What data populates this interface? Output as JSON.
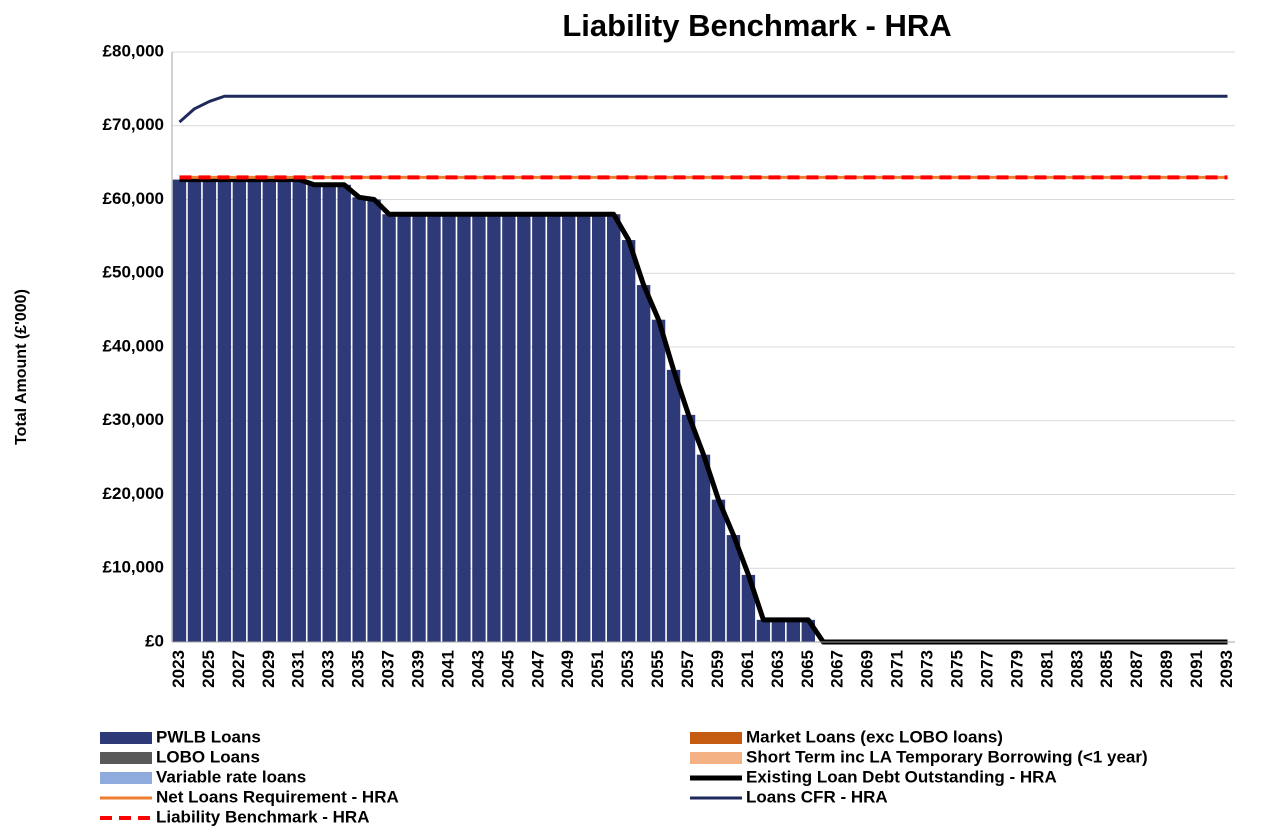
{
  "chart_data": {
    "type": "bar",
    "title": "Liability Benchmark - HRA",
    "y_label": "Total Amount (£'000)",
    "categories": [
      "2023",
      null,
      "2025",
      null,
      "2027",
      null,
      "2029",
      null,
      "2031",
      null,
      "2033",
      null,
      "2035",
      null,
      "2037",
      null,
      "2039",
      null,
      "2041",
      null,
      "2043",
      null,
      "2045",
      null,
      "2047",
      null,
      "2049",
      null,
      "2051",
      null,
      "2053",
      null,
      "2055",
      null,
      "2057",
      null,
      "2059",
      null,
      "2061",
      null,
      "2063",
      null,
      "2065",
      null,
      "2067",
      null,
      "2069",
      null,
      "2071",
      null,
      "2073",
      null,
      "2075",
      null,
      "2077",
      null,
      "2079",
      null,
      "2081",
      null,
      "2083",
      null,
      "2085",
      null,
      "2087",
      null,
      "2089",
      null,
      "2091",
      null,
      "2093"
    ],
    "ylim": [
      0,
      80000
    ],
    "yticks": [
      {
        "value": 0,
        "label": "£0"
      },
      {
        "value": 10000,
        "label": "£10,000"
      },
      {
        "value": 20000,
        "label": "£20,000"
      },
      {
        "value": 30000,
        "label": "£30,000"
      },
      {
        "value": 40000,
        "label": "£40,000"
      },
      {
        "value": 50000,
        "label": "£50,000"
      },
      {
        "value": 60000,
        "label": "£60,000"
      },
      {
        "value": 70000,
        "label": "£70,000"
      },
      {
        "value": 80000,
        "label": "£80,000"
      }
    ],
    "grid": true,
    "series": [
      {
        "name": "PWLB Loans",
        "kind": "bar",
        "color": "#2e3a78",
        "values": [
          62700,
          62700,
          62700,
          62700,
          62700,
          62700,
          62700,
          62700,
          62700,
          62000,
          62000,
          62000,
          60300,
          60000,
          58000,
          58000,
          58000,
          58000,
          58000,
          58000,
          58000,
          58000,
          58000,
          58000,
          58000,
          58000,
          58000,
          58000,
          58000,
          58000,
          54500,
          48400,
          43700,
          36900,
          30800,
          25400,
          19300,
          14500,
          9100,
          3000,
          3000,
          3000,
          3000,
          0,
          0,
          0,
          0,
          0,
          0,
          0,
          0,
          0,
          0,
          0,
          0,
          0,
          0,
          0,
          0,
          0,
          0,
          0,
          0,
          0,
          0,
          0,
          0,
          0,
          0,
          0,
          0
        ]
      },
      {
        "name": "Market Loans (exc LOBO loans)",
        "kind": "bar",
        "color": "#c55a11",
        "values": [
          0,
          0,
          0,
          0,
          0,
          0,
          0,
          0,
          0,
          0,
          0,
          0,
          0,
          0,
          0,
          0,
          0,
          0,
          0,
          0,
          0,
          0,
          0,
          0,
          0,
          0,
          0,
          0,
          0,
          0,
          0,
          0,
          0,
          0,
          0,
          0,
          0,
          0,
          0,
          0,
          0,
          0,
          0,
          0,
          0,
          0,
          0,
          0,
          0,
          0,
          0,
          0,
          0,
          0,
          0,
          0,
          0,
          0,
          0,
          0,
          0,
          0,
          0,
          0,
          0,
          0,
          0,
          0,
          0,
          0,
          0
        ]
      },
      {
        "name": "LOBO Loans",
        "kind": "bar",
        "color": "#595959",
        "values": [
          0,
          0,
          0,
          0,
          0,
          0,
          0,
          0,
          0,
          0,
          0,
          0,
          0,
          0,
          0,
          0,
          0,
          0,
          0,
          0,
          0,
          0,
          0,
          0,
          0,
          0,
          0,
          0,
          0,
          0,
          0,
          0,
          0,
          0,
          0,
          0,
          0,
          0,
          0,
          0,
          0,
          0,
          0,
          0,
          0,
          0,
          0,
          0,
          0,
          0,
          0,
          0,
          0,
          0,
          0,
          0,
          0,
          0,
          0,
          0,
          0,
          0,
          0,
          0,
          0,
          0,
          0,
          0,
          0,
          0,
          0
        ]
      },
      {
        "name": "Short Term inc LA Temporary Borrowing (<1 year)",
        "kind": "bar",
        "color": "#f4b183",
        "values": [
          0,
          0,
          0,
          0,
          0,
          0,
          0,
          0,
          0,
          0,
          0,
          0,
          0,
          0,
          0,
          0,
          0,
          0,
          0,
          0,
          0,
          0,
          0,
          0,
          0,
          0,
          0,
          0,
          0,
          0,
          0,
          0,
          0,
          0,
          0,
          0,
          0,
          0,
          0,
          0,
          0,
          0,
          0,
          0,
          0,
          0,
          0,
          0,
          0,
          0,
          0,
          0,
          0,
          0,
          0,
          0,
          0,
          0,
          0,
          0,
          0,
          0,
          0,
          0,
          0,
          0,
          0,
          0,
          0,
          0,
          0
        ]
      },
      {
        "name": "Variable rate loans",
        "kind": "bar",
        "color": "#8faadc",
        "values": [
          0,
          0,
          0,
          0,
          0,
          0,
          0,
          0,
          0,
          0,
          0,
          0,
          0,
          0,
          0,
          0,
          0,
          0,
          0,
          0,
          0,
          0,
          0,
          0,
          0,
          0,
          0,
          0,
          0,
          0,
          0,
          0,
          0,
          0,
          0,
          0,
          0,
          0,
          0,
          0,
          0,
          0,
          0,
          0,
          0,
          0,
          0,
          0,
          0,
          0,
          0,
          0,
          0,
          0,
          0,
          0,
          0,
          0,
          0,
          0,
          0,
          0,
          0,
          0,
          0,
          0,
          0,
          0,
          0,
          0,
          0
        ]
      },
      {
        "name": "Existing Loan Debt Outstanding - HRA",
        "kind": "line",
        "color": "#000000",
        "width": 5,
        "values": [
          62700,
          62700,
          62700,
          62700,
          62700,
          62700,
          62700,
          62700,
          62700,
          62000,
          62000,
          62000,
          60300,
          60000,
          58000,
          58000,
          58000,
          58000,
          58000,
          58000,
          58000,
          58000,
          58000,
          58000,
          58000,
          58000,
          58000,
          58000,
          58000,
          58000,
          54500,
          48400,
          43700,
          36900,
          30800,
          25400,
          19300,
          14500,
          9100,
          3000,
          3000,
          3000,
          3000,
          0,
          0,
          0,
          0,
          0,
          0,
          0,
          0,
          0,
          0,
          0,
          0,
          0,
          0,
          0,
          0,
          0,
          0,
          0,
          0,
          0,
          0,
          0,
          0,
          0,
          0,
          0,
          0
        ]
      },
      {
        "name": "Net Loans Requirement - HRA",
        "kind": "line",
        "color": "#ed7d31",
        "width": 3,
        "values": [
          63000,
          63000,
          63000,
          63000,
          63000,
          63000,
          63000,
          63000,
          63000,
          63000,
          63000,
          63000,
          63000,
          63000,
          63000,
          63000,
          63000,
          63000,
          63000,
          63000,
          63000,
          63000,
          63000,
          63000,
          63000,
          63000,
          63000,
          63000,
          63000,
          63000,
          63000,
          63000,
          63000,
          63000,
          63000,
          63000,
          63000,
          63000,
          63000,
          63000,
          63000,
          63000,
          63000,
          63000,
          63000,
          63000,
          63000,
          63000,
          63000,
          63000,
          63000,
          63000,
          63000,
          63000,
          63000,
          63000,
          63000,
          63000,
          63000,
          63000,
          63000,
          63000,
          63000,
          63000,
          63000,
          63000,
          63000,
          63000,
          63000,
          63000,
          63000
        ]
      },
      {
        "name": "Loans CFR - HRA",
        "kind": "line",
        "color": "#1f2a5c",
        "width": 3,
        "values": [
          70500,
          72300,
          73300,
          74000,
          74000,
          74000,
          74000,
          74000,
          74000,
          74000,
          74000,
          74000,
          74000,
          74000,
          74000,
          74000,
          74000,
          74000,
          74000,
          74000,
          74000,
          74000,
          74000,
          74000,
          74000,
          74000,
          74000,
          74000,
          74000,
          74000,
          74000,
          74000,
          74000,
          74000,
          74000,
          74000,
          74000,
          74000,
          74000,
          74000,
          74000,
          74000,
          74000,
          74000,
          74000,
          74000,
          74000,
          74000,
          74000,
          74000,
          74000,
          74000,
          74000,
          74000,
          74000,
          74000,
          74000,
          74000,
          74000,
          74000,
          74000,
          74000,
          74000,
          74000,
          74000,
          74000,
          74000,
          74000,
          74000,
          74000,
          74000
        ]
      },
      {
        "name": "Liability Benchmark - HRA",
        "kind": "line",
        "color": "#ff0000",
        "width": 4,
        "dashed": true,
        "values": [
          63000,
          63000,
          63000,
          63000,
          63000,
          63000,
          63000,
          63000,
          63000,
          63000,
          63000,
          63000,
          63000,
          63000,
          63000,
          63000,
          63000,
          63000,
          63000,
          63000,
          63000,
          63000,
          63000,
          63000,
          63000,
          63000,
          63000,
          63000,
          63000,
          63000,
          63000,
          63000,
          63000,
          63000,
          63000,
          63000,
          63000,
          63000,
          63000,
          63000,
          63000,
          63000,
          63000,
          63000,
          63000,
          63000,
          63000,
          63000,
          63000,
          63000,
          63000,
          63000,
          63000,
          63000,
          63000,
          63000,
          63000,
          63000,
          63000,
          63000,
          63000,
          63000,
          63000,
          63000,
          63000,
          63000,
          63000,
          63000,
          63000,
          63000,
          63000
        ]
      }
    ]
  }
}
